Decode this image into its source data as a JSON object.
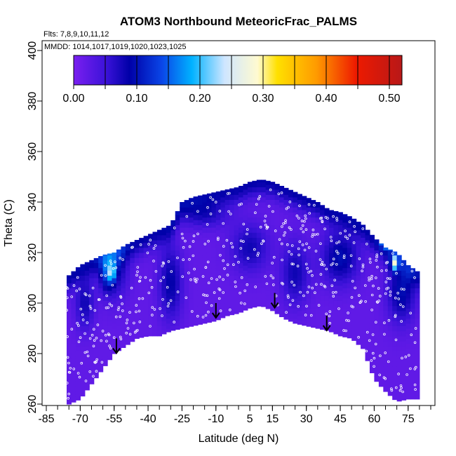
{
  "chart_data": {
    "type": "heatmap",
    "title": "ATOM3 Northbound MeteoricFrac_PALMS",
    "annotations": {
      "flights": "Flts: 7,8,9,10,11,12",
      "dates": "MMDD: 1014,1017,1019,1020,1023,1025"
    },
    "xlabel": "Latitude (deg N)",
    "ylabel": "Theta (C)",
    "xlim": [
      -85,
      85
    ],
    "ylim": [
      260,
      400
    ],
    "x_ticks": [
      -85,
      -70,
      -55,
      -40,
      -25,
      -10,
      5,
      15,
      30,
      45,
      60,
      75
    ],
    "x_tick_labels": [
      "-85",
      "-70",
      "-55",
      "-40",
      "-25",
      "-10",
      "5",
      "15",
      "30",
      "45",
      "60",
      "75"
    ],
    "y_ticks": [
      260,
      280,
      300,
      320,
      340,
      360,
      380,
      400
    ],
    "y_tick_labels": [
      "260",
      "280",
      "300",
      "320",
      "340",
      "360",
      "380",
      "400"
    ],
    "colorbar": {
      "range": [
        0,
        0.52
      ],
      "ticks": [
        0.0,
        0.1,
        0.2,
        0.3,
        0.4,
        0.5
      ],
      "tick_labels": [
        "0.00",
        "0.10",
        "0.20",
        "0.30",
        "0.40",
        "0.50"
      ],
      "colors": [
        "#7a1ff0",
        "#0000a8",
        "#0a47e8",
        "#00b2ff",
        "#cfe6ff",
        "#fffad0",
        "#ffe000",
        "#ff9a00",
        "#ee1a00",
        "#b81818"
      ]
    },
    "envelope": {
      "lat": [
        -75,
        -70,
        -65,
        -60,
        -55,
        -50,
        -45,
        -40,
        -35,
        -30,
        -25,
        -20,
        -15,
        -10,
        -5,
        0,
        5,
        10,
        15,
        20,
        25,
        30,
        35,
        40,
        45,
        50,
        55,
        60,
        65,
        70,
        75,
        80
      ],
      "theta_min": [
        260,
        262,
        268,
        274,
        280,
        283,
        286,
        287,
        287,
        289,
        290,
        291,
        292,
        293,
        295,
        296,
        298,
        299,
        297,
        294,
        292,
        291,
        290,
        289,
        287,
        286,
        282,
        270,
        265,
        261,
        262,
        262
      ],
      "theta_max": [
        311,
        315,
        317,
        319,
        320,
        323,
        325,
        327,
        329,
        331,
        340,
        342,
        343,
        344,
        345,
        346,
        348,
        349,
        348,
        346,
        344,
        342,
        340,
        337,
        336,
        334,
        331,
        326,
        322,
        320,
        315,
        312
      ]
    },
    "arrows": [
      {
        "lat": -54,
        "theta": 286
      },
      {
        "lat": -10,
        "theta": 300
      },
      {
        "lat": 16,
        "theta": 304
      },
      {
        "lat": 39,
        "theta": 295
      }
    ]
  }
}
